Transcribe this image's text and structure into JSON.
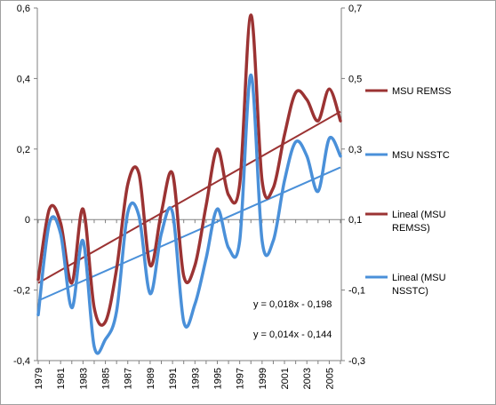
{
  "chart_data": {
    "type": "line",
    "title": "",
    "xlabel": "",
    "ylabel": "",
    "x": [
      1979,
      1980,
      1981,
      1982,
      1983,
      1984,
      1985,
      1986,
      1987,
      1988,
      1989,
      1990,
      1991,
      1992,
      1993,
      1994,
      1995,
      1996,
      1997,
      1998,
      1999,
      2000,
      2001,
      2002,
      2003,
      2004,
      2005,
      2006
    ],
    "x_tick_labels": [
      "1979",
      "1981",
      "1983",
      "1985",
      "1987",
      "1989",
      "1991",
      "1993",
      "1995",
      "1997",
      "1999",
      "2001",
      "2003",
      "2005"
    ],
    "y_left": {
      "range": [
        -0.4,
        0.6
      ],
      "ticks": [
        "-0,4",
        "-0,2",
        "0",
        "0,2",
        "0,4",
        "0,6"
      ]
    },
    "y_right": {
      "range": [
        -0.3,
        0.7
      ],
      "ticks": [
        "-0,3",
        "-0,1",
        "0,1",
        "0,3",
        "0,5",
        "0,7"
      ]
    },
    "series": [
      {
        "name": "MSU REMSS",
        "axis": "left",
        "color": "#9b3333",
        "values": [
          -0.17,
          0.03,
          -0.01,
          -0.18,
          0.03,
          -0.25,
          -0.29,
          -0.14,
          0.1,
          0.13,
          -0.13,
          0.02,
          0.13,
          -0.16,
          -0.13,
          0.04,
          0.2,
          0.07,
          0.1,
          0.58,
          0.11,
          0.09,
          0.24,
          0.36,
          0.34,
          0.28,
          0.37,
          0.28
        ]
      },
      {
        "name": "MSU NSSTC",
        "axis": "right",
        "color": "#4a90d9",
        "values": [
          -0.17,
          0.09,
          0.06,
          -0.15,
          0.04,
          -0.26,
          -0.24,
          -0.16,
          0.12,
          0.11,
          -0.11,
          0.06,
          0.12,
          -0.19,
          -0.14,
          -0.01,
          0.13,
          0.02,
          0.04,
          0.51,
          0.04,
          0.04,
          0.21,
          0.32,
          0.28,
          0.18,
          0.33,
          0.28
        ]
      },
      {
        "name": "Lineal (MSU REMSS)",
        "axis": "left",
        "color": "#9b3333",
        "trend": {
          "slope": 0.018,
          "intercept": -0.198
        }
      },
      {
        "name": "Lineal (MSU NSSTC)",
        "axis": "right",
        "color": "#4a90d9",
        "trend": {
          "slope": 0.014,
          "intercept": -0.144
        }
      }
    ],
    "annotations": [
      "y = 0,018x - 0,198",
      "y = 0,014x - 0,144"
    ],
    "grid": false,
    "legend": "right"
  },
  "legend": {
    "items": [
      {
        "label": [
          "MSU REMSS"
        ],
        "color": "#9b3333"
      },
      {
        "label": [
          "MSU NSSTC"
        ],
        "color": "#4a90d9"
      },
      {
        "label": [
          "Lineal (MSU",
          "REMSS)"
        ],
        "color": "#9b3333"
      },
      {
        "label": [
          "Lineal (MSU",
          "NSSTC)"
        ],
        "color": "#4a90d9"
      }
    ]
  }
}
